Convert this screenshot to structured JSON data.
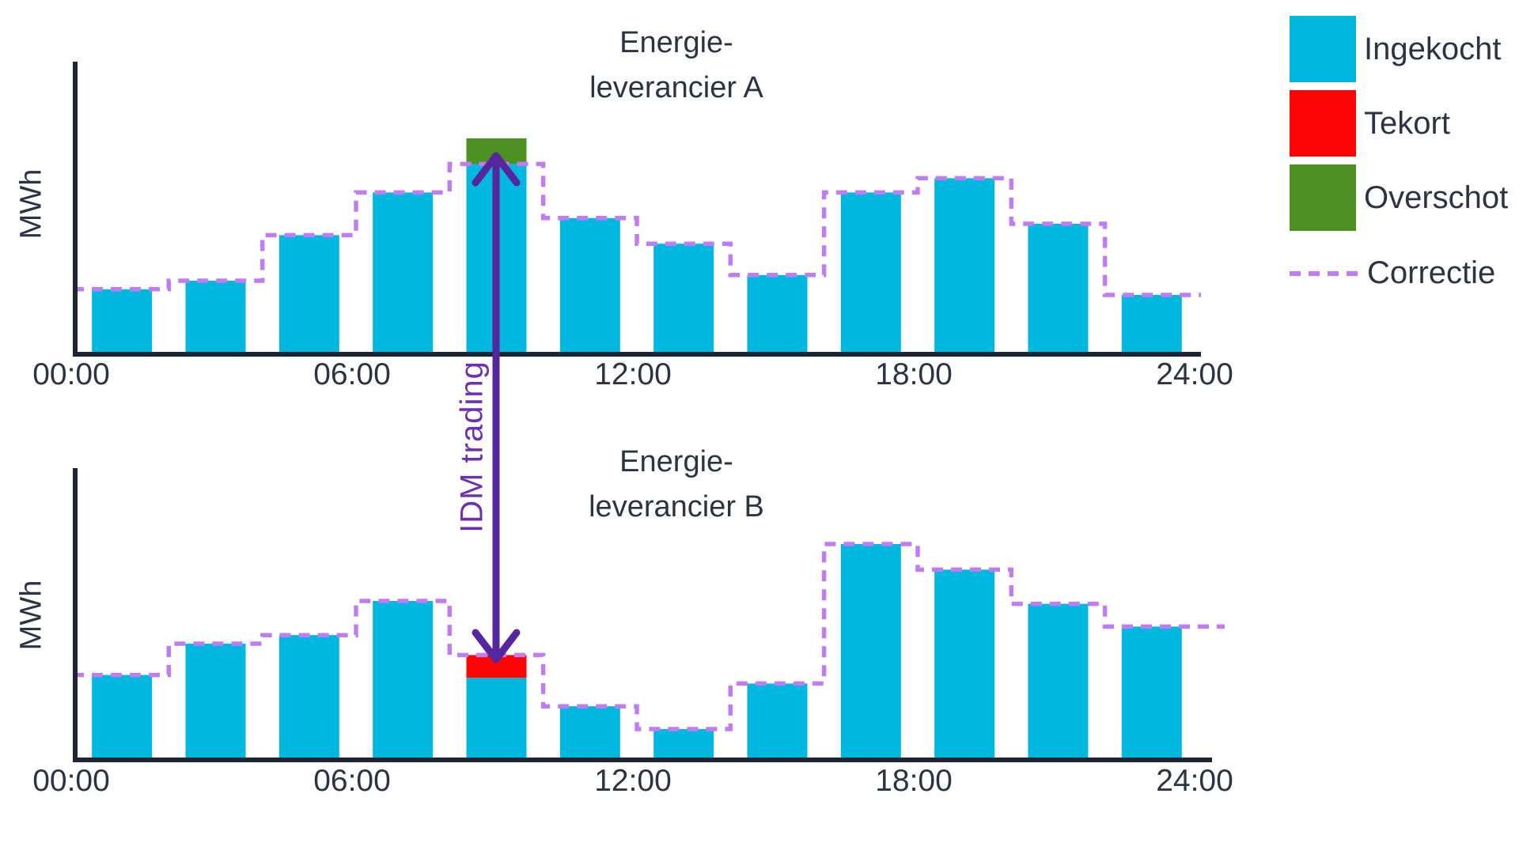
{
  "page": {
    "background": "#ffffff"
  },
  "colors": {
    "ingekocht": "#00b7df",
    "tekort": "#fb0505",
    "overschot": "#4d9123",
    "correctie": "#c07cf4",
    "arrow": "#55269e",
    "idm_label_color": "#6e2fb0",
    "axis": "#1d2433",
    "text": "#2c3343"
  },
  "legend": {
    "items": [
      {
        "label": "Ingekocht",
        "type": "swatch",
        "color": "#00b7df"
      },
      {
        "label": "Tekort",
        "type": "swatch",
        "color": "#fb0505"
      },
      {
        "label": "Overschot",
        "type": "swatch",
        "color": "#4d9123"
      },
      {
        "label": "Correctie",
        "type": "dashed-line",
        "color": "#c07cf4"
      }
    ]
  },
  "annotation": {
    "label": "IDM trading"
  },
  "chart_data": [
    {
      "id": "A",
      "type": "bar",
      "title_lines": [
        "Energie-",
        "leverancier A"
      ],
      "ylabel": "MWh",
      "xlabel": "",
      "x_ticks": [
        "00:00",
        "06:00",
        "12:00",
        "18:00",
        "24:00"
      ],
      "categories": [
        "00-02",
        "02-04",
        "04-06",
        "06-08",
        "08-10",
        "10-12",
        "12-14",
        "14-16",
        "16-18",
        "18-20",
        "20-22",
        "22-24"
      ],
      "series": [
        {
          "name": "Ingekocht",
          "values": [
            22,
            25,
            41,
            56,
            75,
            47,
            38,
            27,
            56,
            61,
            45,
            20
          ]
        },
        {
          "name": "Correctie",
          "values": [
            22,
            25,
            41,
            56,
            66,
            47,
            38,
            27,
            56,
            61,
            45,
            20
          ]
        }
      ],
      "segments": {
        "overschot": {
          "category": "08-10",
          "from": 66,
          "to": 75
        }
      },
      "ylim": [
        0,
        100
      ],
      "grid": false,
      "legend_position": "top-right"
    },
    {
      "id": "B",
      "type": "bar",
      "title_lines": [
        "Energie-",
        "leverancier B"
      ],
      "ylabel": "MWh",
      "xlabel": "",
      "x_ticks": [
        "00:00",
        "06:00",
        "12:00",
        "18:00",
        "24:00"
      ],
      "categories": [
        "00-02",
        "02-04",
        "04-06",
        "06-08",
        "08-10",
        "10-12",
        "12-14",
        "14-16",
        "16-18",
        "18-20",
        "20-22",
        "22-24"
      ],
      "series": [
        {
          "name": "Ingekocht",
          "values": [
            29,
            40,
            43,
            55,
            28,
            18,
            10,
            26,
            75,
            66,
            54,
            46
          ]
        },
        {
          "name": "Correctie",
          "values": [
            29,
            40,
            43,
            55,
            36,
            18,
            10,
            26,
            75,
            66,
            54,
            46
          ]
        }
      ],
      "segments": {
        "tekort": {
          "category": "08-10",
          "from": 28,
          "to": 36
        }
      },
      "ylim": [
        0,
        100
      ],
      "grid": false,
      "legend_position": "top-right"
    }
  ]
}
